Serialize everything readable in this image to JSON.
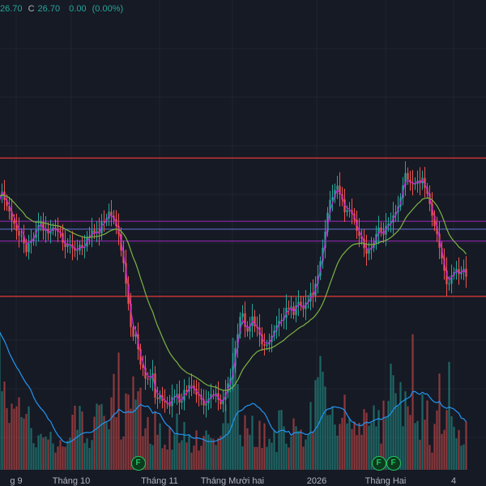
{
  "legend": {
    "open_value": "26.70",
    "close_key": "C",
    "close_value": "26.70",
    "change": "0.00",
    "change_pct": "(0.00%)"
  },
  "x_axis_labels": [
    "g 9",
    "Tháng 10",
    "Tháng 11",
    "Tháng Mười hai",
    "2026",
    "Tháng Hai",
    "4"
  ],
  "event_markers": [
    {
      "label": "F",
      "after_bar": 57
    },
    {
      "label": "F",
      "after_bar": 156
    },
    {
      "label": "F",
      "after_bar": 162
    }
  ],
  "colors": {
    "background": "#161a25",
    "up": "#26a69a",
    "down": "#ef5350",
    "level_red": "#e53935",
    "level_purple": "#8e24aa",
    "level_blue": "#5c6bc0",
    "ma_fast": "#c026d3",
    "ma_slow": "#7cb342",
    "volume_ma": "#2196f3"
  },
  "chart_data": {
    "type": "candlestick",
    "horizontal_levels": [
      29.7,
      28.1,
      27.9,
      27.6,
      26.2
    ],
    "price_range": [
      21.4,
      33.7
    ],
    "closes": [
      28.75,
      28.85,
      28.64,
      28.49,
      28.35,
      28.12,
      28.04,
      27.86,
      27.74,
      27.74,
      27.54,
      27.32,
      27.55,
      27.61,
      27.68,
      27.87,
      28.0,
      28.07,
      27.86,
      27.89,
      27.79,
      27.86,
      27.94,
      27.9,
      27.84,
      27.8,
      27.56,
      27.45,
      27.51,
      27.51,
      27.42,
      27.36,
      27.36,
      27.5,
      27.43,
      27.46,
      27.71,
      27.73,
      27.87,
      27.8,
      27.85,
      27.79,
      28.1,
      28.08,
      28.17,
      28.34,
      28.24,
      28.15,
      27.98,
      27.78,
      27.36,
      27.04,
      26.52,
      26.01,
      25.42,
      25.18,
      25.24,
      24.86,
      24.47,
      24.39,
      24.12,
      24.11,
      24.11,
      24.25,
      23.64,
      23.6,
      23.7,
      23.55,
      23.52,
      23.48,
      23.42,
      23.65,
      23.68,
      23.73,
      23.51,
      23.56,
      23.83,
      23.79,
      23.95,
      23.94,
      23.86,
      23.71,
      23.7,
      23.59,
      23.44,
      23.49,
      23.61,
      23.72,
      23.7,
      23.75,
      23.58,
      23.47,
      23.58,
      23.77,
      24.0,
      24.12,
      24.43,
      24.89,
      25.24,
      25.68,
      25.77,
      25.43,
      25.31,
      25.45,
      25.69,
      25.44,
      25.41,
      25.23,
      24.99,
      24.95,
      24.98,
      25.05,
      25.2,
      25.33,
      25.47,
      25.58,
      25.6,
      25.66,
      25.91,
      25.89,
      25.94,
      25.73,
      25.97,
      26.06,
      25.96,
      25.88,
      26.04,
      26.07,
      26.29,
      26.22,
      26.52,
      26.72,
      27.09,
      27.43,
      27.84,
      28.32,
      28.64,
      28.71,
      28.89,
      29.0,
      28.78,
      28.65,
      28.33,
      28.38,
      28.38,
      28.29,
      28.14,
      27.86,
      27.73,
      27.65,
      27.42,
      27.28,
      27.38,
      27.43,
      27.56,
      27.78,
      27.94,
      27.84,
      27.76,
      27.99,
      28.04,
      28.07,
      28.25,
      28.33,
      28.47,
      28.69,
      29.01,
      29.32,
      29.15,
      29.08,
      29.04,
      29.05,
      29.13,
      29.06,
      29.2,
      28.95,
      28.8,
      28.54,
      28.24,
      27.98,
      27.78,
      27.43,
      27.16,
      26.85,
      26.51,
      26.52,
      26.73,
      26.81,
      26.89,
      26.76,
      26.82,
      26.9,
      26.7
    ],
    "volumes": [
      123.0,
      70.1,
      78.7,
      55.0,
      41.8,
      59.0,
      54.5,
      56.6,
      64.6,
      47.0,
      45.8,
      49.8,
      56.5,
      37.2,
      23.8,
      20.0,
      30.7,
      32.0,
      28.7,
      29.6,
      27.0,
      33.9,
      23.5,
      15.4,
      20.8,
      26.5,
      20.8,
      20.4,
      25.8,
      28.6,
      49.1,
      57.2,
      35.7,
      57.1,
      52.0,
      23.9,
      28.0,
      19.4,
      26.5,
      47.3,
      59.0,
      57.7,
      58.6,
      48.1,
      42.3,
      36.2,
      64.6,
      85.5,
      46.9,
      104.5,
      27.1,
      29.7,
      68.1,
      67.1,
      54.5,
      83.3,
      62.6,
      70.1,
      73.3,
      30.0,
      37.0,
      47.0,
      23.3,
      22.0,
      52.4,
      31.2,
      41.4,
      19.2,
      22.4,
      18.1,
      38.1,
      17.9,
      31.6,
      50.2,
      24.0,
      26.3,
      42.6,
      24.4,
      30.6,
      15.4,
      21.6,
      35.1,
      17.2,
      21.4,
      30.2,
      35.1,
      31.4,
      28.4,
      27.7,
      22.1,
      28.1,
      30.4,
      41.5,
      58.2,
      41.5,
      82.1,
      117.7,
      104.3,
      76.5,
      31.2,
      20.9,
      48.6,
      37.0,
      31.2,
      48.2,
      20.4,
      20.4,
      43.7,
      19.5,
      41.4,
      20.5,
      27.6,
      24.2,
      35.4,
      15.8,
      53.1,
      53.4,
      38.8,
      23.3,
      19.9,
      29.6,
      45.8,
      38.8,
      34.7,
      35.8,
      20.6,
      27.1,
      31.7,
      60.5,
      34.3,
      80.0,
      82.5,
      101.5,
      87.5,
      74.3,
      48.7,
      49.1,
      56.7,
      40.4,
      30.5,
      40.9,
      46.4,
      67.0,
      41.3,
      45.8,
      36.4,
      43.1,
      30.9,
      41.9,
      31.2,
      54.1,
      50.9,
      39.3,
      41.9,
      57.4,
      38.7,
      53.3,
      23.4,
      61.7,
      46.9,
      61.5,
      94.6,
      84.3,
      68.3,
      57.2,
      78.2,
      38.8,
      70.0,
      56.6,
      48.9,
      120.9,
      41.7,
      43.5,
      26.8,
      67.4,
      44.7,
      61.8,
      22.1,
      15.3,
      40.9,
      52.9,
      85.8,
      32.0,
      35.6,
      53.3,
      96.2,
      47.7,
      38.3,
      28.1,
      35.5,
      21.5,
      22.6,
      43.0
    ],
    "series": [
      {
        "name": "",
        "values": [
          28.62,
          28.83,
          28.73,
          28.61,
          28.52,
          28.33,
          28.2,
          28.03,
          27.91,
          27.89,
          27.73,
          27.52,
          27.58,
          27.6,
          27.66,
          27.8,
          27.94,
          28.02,
          27.91,
          27.9,
          27.83,
          27.85,
          27.9,
          27.9,
          27.86,
          27.82,
          27.66,
          27.53,
          27.52,
          27.51,
          27.46,
          27.4,
          27.38,
          27.44,
          27.43,
          27.45,
          27.6,
          27.67,
          27.79,
          27.79,
          27.82,
          27.8,
          27.98,
          28.04,
          28.12,
          28.25,
          28.24,
          28.19,
          28.07,
          27.9,
          27.58,
          27.28,
          26.86,
          26.4,
          25.86,
          25.48,
          25.35,
          25.07,
          24.73,
          24.54,
          24.3,
          24.19,
          24.14,
          24.2,
          23.9,
          23.74,
          23.72,
          23.62,
          23.57,
          23.52,
          23.46,
          23.57,
          23.63,
          23.69,
          23.59,
          23.57,
          23.71,
          23.75,
          23.86,
          23.91,
          23.88,
          23.79,
          23.74,
          23.66,
          23.54,
          23.51,
          23.57,
          23.65,
          23.68,
          23.72,
          23.64,
          23.55,
          23.57,
          23.68,
          23.85,
          24.0,
          24.25,
          24.6,
          24.95,
          25.35,
          25.59,
          25.5,
          25.4,
          25.43,
          25.57,
          25.5,
          25.45,
          25.33,
          25.15,
          25.04,
          25.01,
          25.03,
          25.13,
          25.24,
          25.37,
          25.49,
          25.56,
          25.62,
          25.78,
          25.84,
          25.9,
          25.81,
          25.9,
          25.99,
          25.97,
          25.92,
          25.99,
          26.04,
          26.18,
          26.2,
          26.37,
          26.57,
          26.87,
          27.19,
          27.56,
          27.99,
          28.35,
          28.56,
          28.75,
          28.89,
          28.83,
          28.73,
          28.51,
          28.44,
          28.4,
          28.33,
          28.22,
          28.02,
          27.85,
          27.74,
          27.56,
          27.4,
          27.39,
          27.41,
          27.5,
          27.66,
          27.82,
          27.83,
          27.79,
          27.9,
          27.98,
          28.03,
          28.16,
          28.26,
          28.39,
          28.56,
          28.83,
          29.1,
          29.13,
          29.1,
          29.06,
          29.05,
          29.1,
          29.08,
          29.15,
          29.04,
          28.9,
          28.7,
          28.44,
          28.19,
          27.96,
          27.66,
          27.38,
          27.07,
          26.74,
          26.62,
          26.68,
          26.76,
          26.84,
          26.79,
          26.81,
          26.87,
          26.77
        ]
      },
      {
        "name": "",
        "values": [
          28.75,
          28.76,
          28.75,
          28.73,
          28.69,
          28.63,
          28.57,
          28.5,
          28.43,
          28.37,
          28.3,
          28.21,
          28.17,
          28.13,
          28.09,
          28.08,
          28.08,
          28.08,
          28.06,
          28.05,
          28.03,
          28.01,
          28.0,
          27.99,
          27.98,
          27.97,
          27.94,
          27.9,
          27.87,
          27.84,
          27.81,
          27.78,
          27.75,
          27.73,
          27.71,
          27.69,
          27.69,
          27.69,
          27.7,
          27.71,
          27.72,
          27.72,
          27.75,
          27.77,
          27.8,
          27.84,
          27.87,
          27.89,
          27.9,
          27.89,
          27.85,
          27.78,
          27.68,
          27.54,
          27.36,
          27.18,
          27.04,
          26.86,
          26.66,
          26.48,
          26.28,
          26.1,
          25.94,
          25.81,
          25.62,
          25.45,
          25.31,
          25.16,
          25.02,
          24.89,
          24.77,
          24.68,
          24.6,
          24.53,
          24.44,
          24.37,
          24.32,
          24.27,
          24.24,
          24.21,
          24.18,
          24.14,
          24.1,
          24.06,
          24.01,
          23.97,
          23.94,
          23.93,
          23.91,
          23.9,
          23.87,
          23.84,
          23.82,
          23.82,
          23.83,
          23.86,
          23.9,
          23.98,
          24.08,
          24.21,
          24.34,
          24.43,
          24.51,
          24.59,
          24.68,
          24.74,
          24.8,
          24.83,
          24.85,
          24.86,
          24.87,
          24.88,
          24.9,
          24.93,
          24.97,
          25.01,
          25.05,
          25.09,
          25.15,
          25.2,
          25.25,
          25.29,
          25.34,
          25.39,
          25.43,
          25.46,
          25.51,
          25.55,
          25.61,
          25.65,
          25.72,
          25.8,
          25.9,
          26.02,
          26.17,
          26.34,
          26.52,
          26.69,
          26.86,
          27.02,
          27.14,
          27.24,
          27.31,
          27.38,
          27.44,
          27.49,
          27.52,
          27.53,
          27.54,
          27.55,
          27.54,
          27.52,
          27.51,
          27.51,
          27.51,
          27.53,
          27.56,
          27.58,
          27.59,
          27.62,
          27.65,
          27.69,
          27.74,
          27.8,
          27.86,
          27.94,
          28.05,
          28.17,
          28.26,
          28.33,
          28.4,
          28.47,
          28.54,
          28.59,
          28.66,
          28.68,
          28.69,
          28.68,
          28.64,
          28.57,
          28.49,
          28.38,
          28.25,
          28.09,
          27.91,
          27.77,
          27.67,
          27.59,
          27.53,
          27.45,
          27.4,
          27.35,
          27.27
        ]
      },
      {
        "name": "",
        "values": [
          123.0,
          118.7,
          114.9,
          109.9,
          104.1,
          99.8,
          95.5,
          91.5,
          88.4,
          84.3,
          80.4,
          76.9,
          74.3,
          70.4,
          64.9,
          60.6,
          57.5,
          54.7,
          52.5,
          49.5,
          45.2,
          43.1,
          38.5,
          34.3,
          30.8,
          28.4,
          25.7,
          24.4,
          24.2,
          24.8,
          26.0,
          27.9,
          29.3,
          30.9,
          32.5,
          32.9,
          33.4,
          33.1,
          33.6,
          35.3,
          36.7,
          38.7,
          40.4,
          41.9,
          43.0,
          43.8,
          46.0,
          49.3,
          50.6,
          53.9,
          52.8,
          51.0,
          51.2,
          51.7,
          51.2,
          51.6,
          53.5,
          56.2,
          58.3,
          57.1,
          56.4,
          56.9,
          54.3,
          50.5,
          51.6,
          50.5,
          49.9,
          45.7,
          42.0,
          39.7,
          38.2,
          35.4,
          32.3,
          32.2,
          31.6,
          31.6,
          31.0,
          30.9,
          31.3,
          28.9,
          28.1,
          28.5,
          28.2,
          27.6,
          27.0,
          25.6,
          25.3,
          25.1,
          25.3,
          25.6,
          26.7,
          27.5,
          28.5,
          30.8,
          31.9,
          35.9,
          42.0,
          47.5,
          51.6,
          52.4,
          53.6,
          56.0,
          57.3,
          57.7,
          59.2,
          58.6,
          56.4,
          55.1,
          52.3,
          50.5,
          46.6,
          41.6,
          37.5,
          35.1,
          33.0,
          34.3,
          35.3,
          35.0,
          33.7,
          34.2,
          30.6,
          32.7,
          33.2,
          32.9,
          33.6,
          32.5,
          31.5,
          31.6,
          33.4,
          33.3,
          36.6,
          39.4,
          44.4,
          49.0,
          52.5,
          54.1,
          54.5,
          55.8,
          56.2,
          55.7,
          55.3,
          54.6,
          53.1,
          49.0,
          45.5,
          42.8,
          41.8,
          40.0,
          39.7,
          39.3,
          41.5,
          42.3,
          41.8,
          42.8,
          43.9,
          44.9,
          45.7,
          44.7,
          46.3,
          47.0,
          47.8,
          50.2,
          53.6,
          56.4,
          57.4,
          59.8,
          61.3,
          62.7,
          63.9,
          65.2,
          69.6,
          69.8,
          68.1,
          67.3,
          69.2,
          67.7,
          67.6,
          64.7,
          62.2,
          60.4,
          59.9,
          60.9,
          57.3,
          55.7,
          54.8,
          56.0,
          55.0,
          54.2,
          52.1,
          50.4,
          46.1,
          45.5,
          42.9
        ]
      }
    ]
  }
}
